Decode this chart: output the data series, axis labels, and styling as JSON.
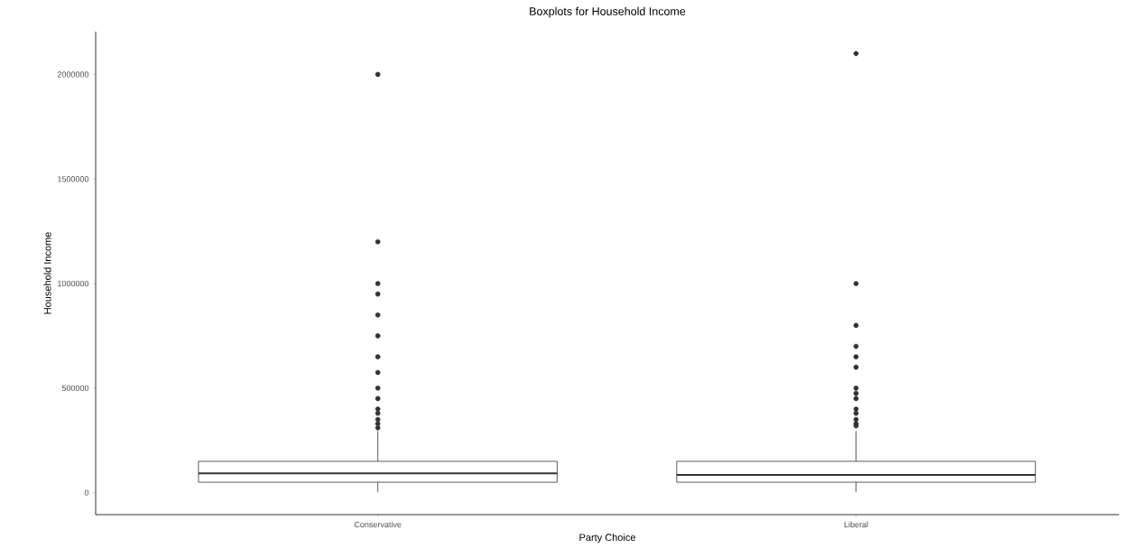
{
  "chart_data": {
    "type": "box",
    "title": "Boxplots for Household Income",
    "xlabel": "Party Choice",
    "ylabel": "Household Income",
    "categories": [
      "Conservative",
      "Liberal"
    ],
    "boxes": [
      {
        "low": 4000,
        "q1": 50000,
        "median": 93000,
        "q3": 150000,
        "high": 295000,
        "outliers": [
          2000000,
          1200000,
          1000000,
          950000,
          850000,
          750000,
          650000,
          575000,
          500000,
          450000,
          400000,
          380000,
          350000,
          330000,
          310000
        ]
      },
      {
        "low": 4000,
        "q1": 50000,
        "median": 85000,
        "q3": 150000,
        "high": 295000,
        "outliers": [
          2100000,
          1000000,
          800000,
          700000,
          650000,
          600000,
          500000,
          475000,
          450000,
          400000,
          380000,
          350000,
          330000,
          320000
        ]
      }
    ],
    "color": "#333333",
    "ylim": [
      -105000,
      2205000
    ],
    "yticks": [
      0,
      500000,
      1000000,
      1500000,
      2000000
    ],
    "grid": false,
    "marker": "circle"
  }
}
